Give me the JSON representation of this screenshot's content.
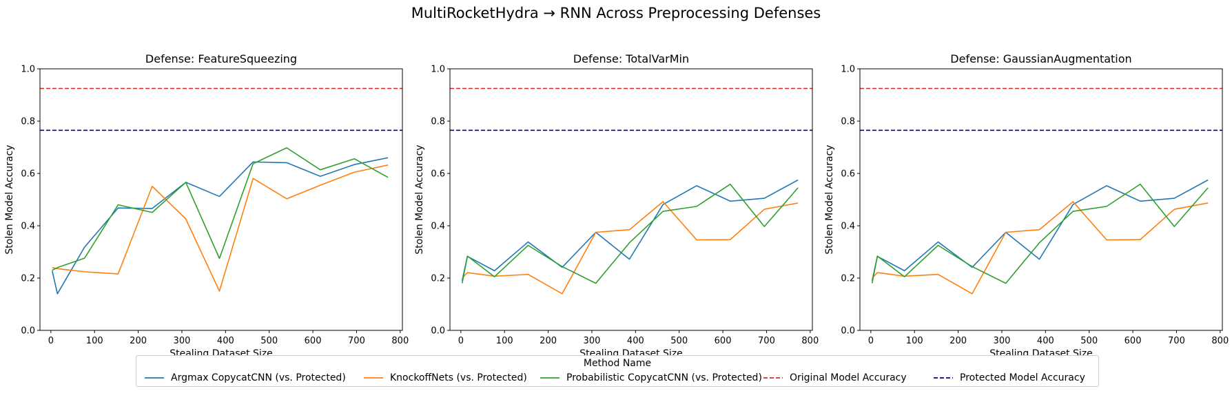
{
  "figure_title": "MultiRocketHydra → RNN Across Preprocessing Defenses",
  "colors": {
    "argmax": "#1f77b4",
    "knockoff": "#ff7f0e",
    "probabilistic": "#2ca02c",
    "original": "#d62728",
    "protected": "#00008b"
  },
  "legend": {
    "title": "Method Name",
    "items": [
      {
        "label": "Argmax CopycatCNN (vs. Protected)",
        "color": "#1f77b4",
        "style": "solid"
      },
      {
        "label": "KnockoffNets (vs. Protected)",
        "color": "#ff7f0e",
        "style": "solid"
      },
      {
        "label": "Probabilistic CopycatCNN (vs. Protected)",
        "color": "#2ca02c",
        "style": "solid"
      },
      {
        "label": "Original Model Accuracy",
        "color": "#d62728",
        "style": "dashed"
      },
      {
        "label": "Protected Model Accuracy",
        "color": "#00008b",
        "style": "dashed"
      }
    ]
  },
  "chart_data": [
    {
      "type": "line",
      "title": "Defense: FeatureSqueezing",
      "xlabel": "Stealing Dataset Size",
      "ylabel": "Stolen Model Accuracy",
      "xlim": [
        -25,
        805
      ],
      "ylim": [
        0.0,
        1.0
      ],
      "xticks": [
        0,
        100,
        200,
        300,
        400,
        500,
        600,
        700,
        800
      ],
      "yticks": [
        0.0,
        0.2,
        0.4,
        0.6,
        0.8,
        1.0
      ],
      "x": [
        3,
        15,
        77,
        154,
        232,
        309,
        386,
        463,
        540,
        617,
        695,
        772
      ],
      "series": [
        {
          "name": "Argmax CopycatCNN (vs. Protected)",
          "values": [
            0.228,
            0.14,
            0.318,
            0.468,
            0.466,
            0.566,
            0.512,
            0.644,
            0.641,
            0.589,
            0.634,
            0.66
          ]
        },
        {
          "name": "KnockoffNets (vs. Protected)",
          "values": [
            0.24,
            0.236,
            0.224,
            0.216,
            0.551,
            0.426,
            0.15,
            0.581,
            0.503,
            0.555,
            0.605,
            0.632
          ]
        },
        {
          "name": "Probabilistic CopycatCNN (vs. Protected)",
          "values": [
            0.23,
            0.24,
            0.276,
            0.48,
            0.451,
            0.566,
            0.275,
            0.637,
            0.698,
            0.614,
            0.656,
            0.585
          ]
        }
      ],
      "hlines": [
        {
          "name": "Original Model Accuracy",
          "y": 0.925
        },
        {
          "name": "Protected Model Accuracy",
          "y": 0.765
        }
      ]
    },
    {
      "type": "line",
      "title": "Defense: TotalVarMin",
      "xlabel": "Stealing Dataset Size",
      "ylabel": "Stolen Model Accuracy",
      "xlim": [
        -25,
        805
      ],
      "ylim": [
        0.0,
        1.0
      ],
      "xticks": [
        0,
        100,
        200,
        300,
        400,
        500,
        600,
        700,
        800
      ],
      "yticks": [
        0.0,
        0.2,
        0.4,
        0.6,
        0.8,
        1.0
      ],
      "x": [
        3,
        15,
        77,
        154,
        232,
        309,
        386,
        463,
        540,
        617,
        695,
        772
      ],
      "series": [
        {
          "name": "Argmax CopycatCNN (vs. Protected)",
          "values": [
            0.19,
            0.283,
            0.228,
            0.338,
            0.241,
            0.375,
            0.272,
            0.481,
            0.553,
            0.494,
            0.505,
            0.575
          ]
        },
        {
          "name": "KnockoffNets (vs. Protected)",
          "values": [
            0.2,
            0.221,
            0.207,
            0.214,
            0.14,
            0.375,
            0.385,
            0.492,
            0.346,
            0.347,
            0.463,
            0.487
          ]
        },
        {
          "name": "Probabilistic CopycatCNN (vs. Protected)",
          "values": [
            0.18,
            0.284,
            0.205,
            0.325,
            0.244,
            0.18,
            0.335,
            0.455,
            0.474,
            0.559,
            0.397,
            0.545
          ]
        }
      ],
      "hlines": [
        {
          "name": "Original Model Accuracy",
          "y": 0.925
        },
        {
          "name": "Protected Model Accuracy",
          "y": 0.765
        }
      ]
    },
    {
      "type": "line",
      "title": "Defense: GaussianAugmentation",
      "xlabel": "Stealing Dataset Size",
      "ylabel": "Stolen Model Accuracy",
      "xlim": [
        -25,
        805
      ],
      "ylim": [
        0.0,
        1.0
      ],
      "xticks": [
        0,
        100,
        200,
        300,
        400,
        500,
        600,
        700,
        800
      ],
      "yticks": [
        0.0,
        0.2,
        0.4,
        0.6,
        0.8,
        1.0
      ],
      "x": [
        3,
        15,
        77,
        154,
        232,
        309,
        386,
        463,
        540,
        617,
        695,
        772
      ],
      "series": [
        {
          "name": "Argmax CopycatCNN (vs. Protected)",
          "values": [
            0.19,
            0.283,
            0.228,
            0.338,
            0.241,
            0.375,
            0.272,
            0.481,
            0.553,
            0.494,
            0.505,
            0.575
          ]
        },
        {
          "name": "KnockoffNets (vs. Protected)",
          "values": [
            0.2,
            0.221,
            0.207,
            0.214,
            0.14,
            0.375,
            0.385,
            0.492,
            0.346,
            0.347,
            0.463,
            0.487
          ]
        },
        {
          "name": "Probabilistic CopycatCNN (vs. Protected)",
          "values": [
            0.18,
            0.284,
            0.205,
            0.325,
            0.244,
            0.18,
            0.335,
            0.455,
            0.474,
            0.559,
            0.397,
            0.545
          ]
        }
      ],
      "hlines": [
        {
          "name": "Original Model Accuracy",
          "y": 0.925
        },
        {
          "name": "Protected Model Accuracy",
          "y": 0.765
        }
      ]
    }
  ]
}
